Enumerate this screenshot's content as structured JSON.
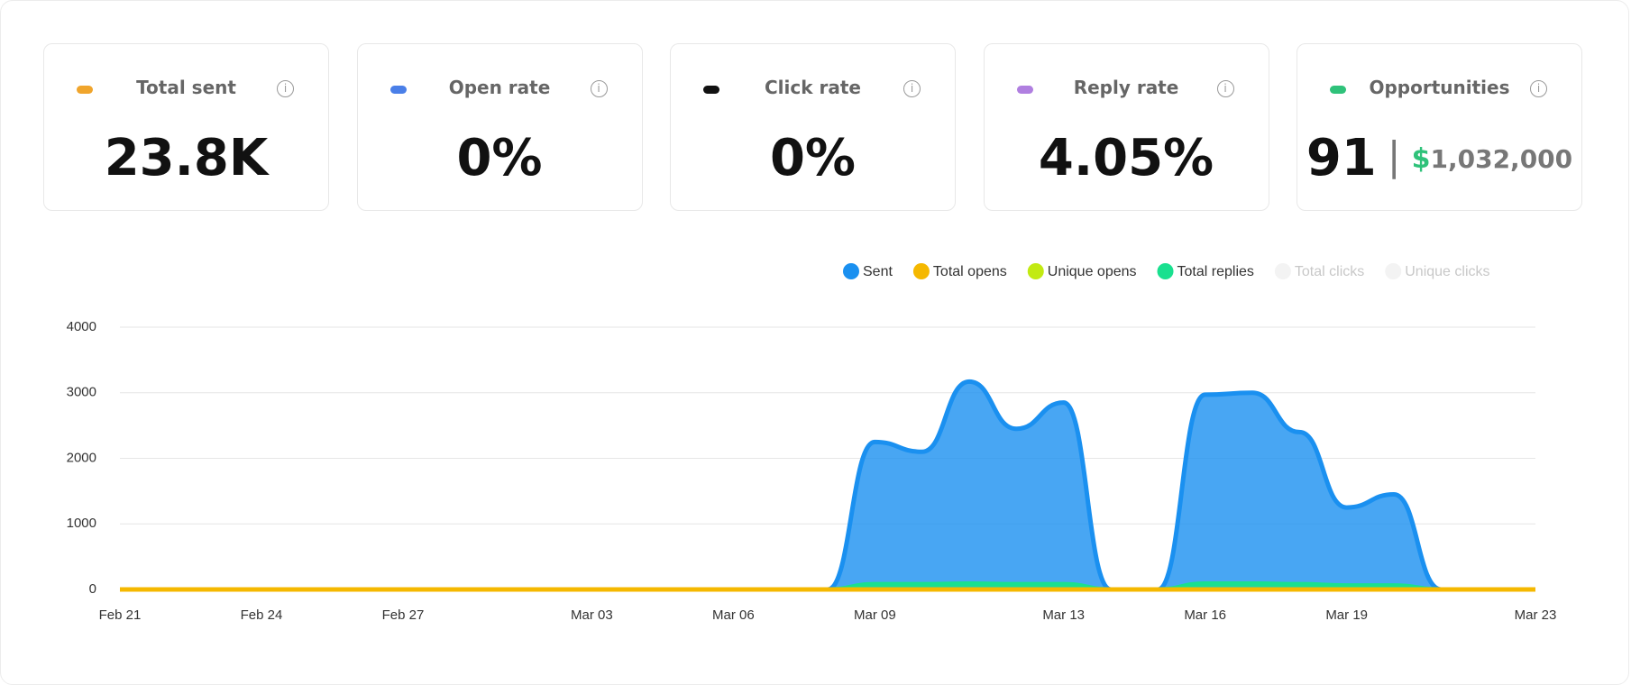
{
  "cards": [
    {
      "label": "Total sent",
      "value": "23.8K",
      "color": "#f0a52c"
    },
    {
      "label": "Open rate",
      "value": "0%",
      "color": "#4a7fe8"
    },
    {
      "label": "Click rate",
      "value": "0%",
      "color": "#111111"
    },
    {
      "label": "Reply rate",
      "value": "4.05%",
      "color": "#b07fe0"
    },
    {
      "label": "Opportunities",
      "value": "91",
      "currency": "$",
      "amount": "1,032,000",
      "color": "#2fc27a"
    }
  ],
  "chart_data": {
    "type": "area",
    "categories": [
      "Feb 21",
      null,
      null,
      "Feb 24",
      null,
      null,
      "Feb 27",
      null,
      null,
      null,
      "Mar 03",
      null,
      null,
      "Mar 06",
      null,
      null,
      "Mar 09",
      null,
      null,
      null,
      "Mar 13",
      null,
      null,
      "Mar 16",
      null,
      null,
      "Mar 19",
      null,
      null,
      null,
      "Mar 23"
    ],
    "ylim": [
      0,
      4000
    ],
    "yticks": [
      0,
      1000,
      2000,
      3000,
      4000
    ],
    "grid": true,
    "series": [
      {
        "name": "Sent",
        "color": "#1a90f0",
        "values": [
          0,
          0,
          0,
          0,
          0,
          0,
          0,
          0,
          0,
          0,
          0,
          0,
          0,
          0,
          0,
          0,
          2250,
          2100,
          3170,
          2450,
          2850,
          0,
          0,
          2970,
          3000,
          2400,
          1250,
          1450,
          0,
          0,
          0
        ]
      },
      {
        "name": "Total opens",
        "color": "#f5b800",
        "values": [
          0,
          0,
          0,
          0,
          0,
          0,
          0,
          0,
          0,
          0,
          0,
          0,
          0,
          0,
          0,
          0,
          0,
          0,
          0,
          0,
          0,
          0,
          0,
          0,
          0,
          0,
          0,
          0,
          0,
          0,
          0
        ]
      },
      {
        "name": "Unique opens",
        "color": "#c2ea12",
        "values": [
          0,
          0,
          0,
          0,
          0,
          0,
          0,
          0,
          0,
          0,
          0,
          0,
          0,
          0,
          0,
          0,
          0,
          0,
          0,
          0,
          0,
          0,
          0,
          0,
          0,
          0,
          0,
          0,
          0,
          0,
          0
        ]
      },
      {
        "name": "Total replies",
        "color": "#19e08f",
        "values": [
          0,
          0,
          0,
          0,
          0,
          0,
          0,
          0,
          0,
          0,
          0,
          0,
          0,
          0,
          0,
          0,
          80,
          80,
          90,
          80,
          80,
          0,
          0,
          90,
          90,
          80,
          60,
          60,
          0,
          0,
          0
        ]
      },
      {
        "name": "Total clicks",
        "color": "#f3f3f3",
        "hidden": true,
        "values": [
          0,
          0,
          0,
          0,
          0,
          0,
          0,
          0,
          0,
          0,
          0,
          0,
          0,
          0,
          0,
          0,
          0,
          0,
          0,
          0,
          0,
          0,
          0,
          0,
          0,
          0,
          0,
          0,
          0,
          0,
          0
        ]
      },
      {
        "name": "Unique clicks",
        "color": "#f3f3f3",
        "hidden": true,
        "values": [
          0,
          0,
          0,
          0,
          0,
          0,
          0,
          0,
          0,
          0,
          0,
          0,
          0,
          0,
          0,
          0,
          0,
          0,
          0,
          0,
          0,
          0,
          0,
          0,
          0,
          0,
          0,
          0,
          0,
          0,
          0
        ]
      }
    ]
  }
}
